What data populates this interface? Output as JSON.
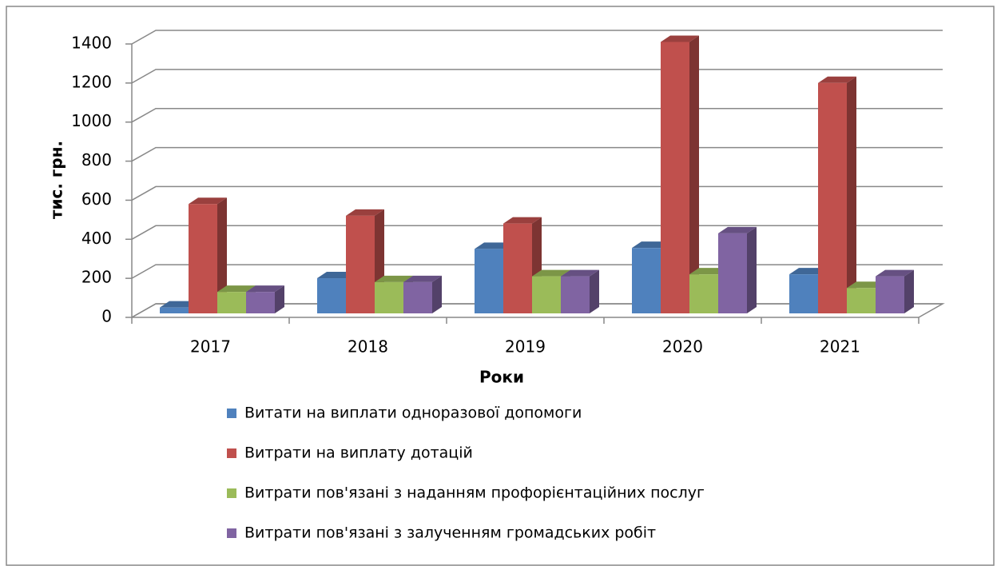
{
  "chart_data": {
    "type": "bar3d",
    "x_label": "Роки",
    "y_label": "тис. грн.",
    "categories": [
      "2017",
      "2018",
      "2019",
      "2020",
      "2021"
    ],
    "series": [
      {
        "name": "Витати на виплати одноразової допомоги",
        "color": "#4f81bd",
        "values": [
          30,
          180,
          330,
          335,
          200
        ]
      },
      {
        "name": "Витрати на виплату дотацій",
        "color": "#c0504d",
        "values": [
          560,
          500,
          460,
          1390,
          1180
        ]
      },
      {
        "name": "Витрати пов'язані з наданням профорієнтаційних послуг",
        "color": "#9bbb59",
        "values": [
          110,
          160,
          190,
          200,
          130
        ]
      },
      {
        "name": "Витрати пов'язані з залученням громадських робіт",
        "color": "#8064a2",
        "values": [
          110,
          160,
          190,
          410,
          190
        ]
      }
    ],
    "ylim": [
      0,
      1400
    ],
    "yticks": [
      0,
      200,
      400,
      600,
      800,
      1000,
      1200,
      1400
    ],
    "grid": true,
    "legend": "bottom"
  }
}
